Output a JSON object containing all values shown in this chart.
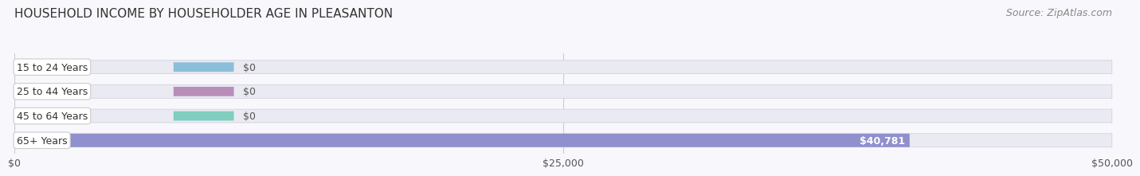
{
  "title": "HOUSEHOLD INCOME BY HOUSEHOLDER AGE IN PLEASANTON",
  "source": "Source: ZipAtlas.com",
  "categories": [
    "15 to 24 Years",
    "25 to 44 Years",
    "45 to 64 Years",
    "65+ Years"
  ],
  "values": [
    0,
    0,
    0,
    40781
  ],
  "bar_colors": [
    "#7ab8d4",
    "#b07db0",
    "#6dcab8",
    "#8080c8"
  ],
  "xlim": [
    0,
    50000
  ],
  "xticks": [
    0,
    25000,
    50000
  ],
  "xtick_labels": [
    "$0",
    "$25,000",
    "$50,000"
  ],
  "title_fontsize": 11,
  "source_fontsize": 9,
  "tick_fontsize": 9,
  "bar_label_fontsize": 9,
  "category_fontsize": 9,
  "bar_height": 0.55,
  "value_labels": [
    "$0",
    "$0",
    "$0",
    "$40,781"
  ]
}
